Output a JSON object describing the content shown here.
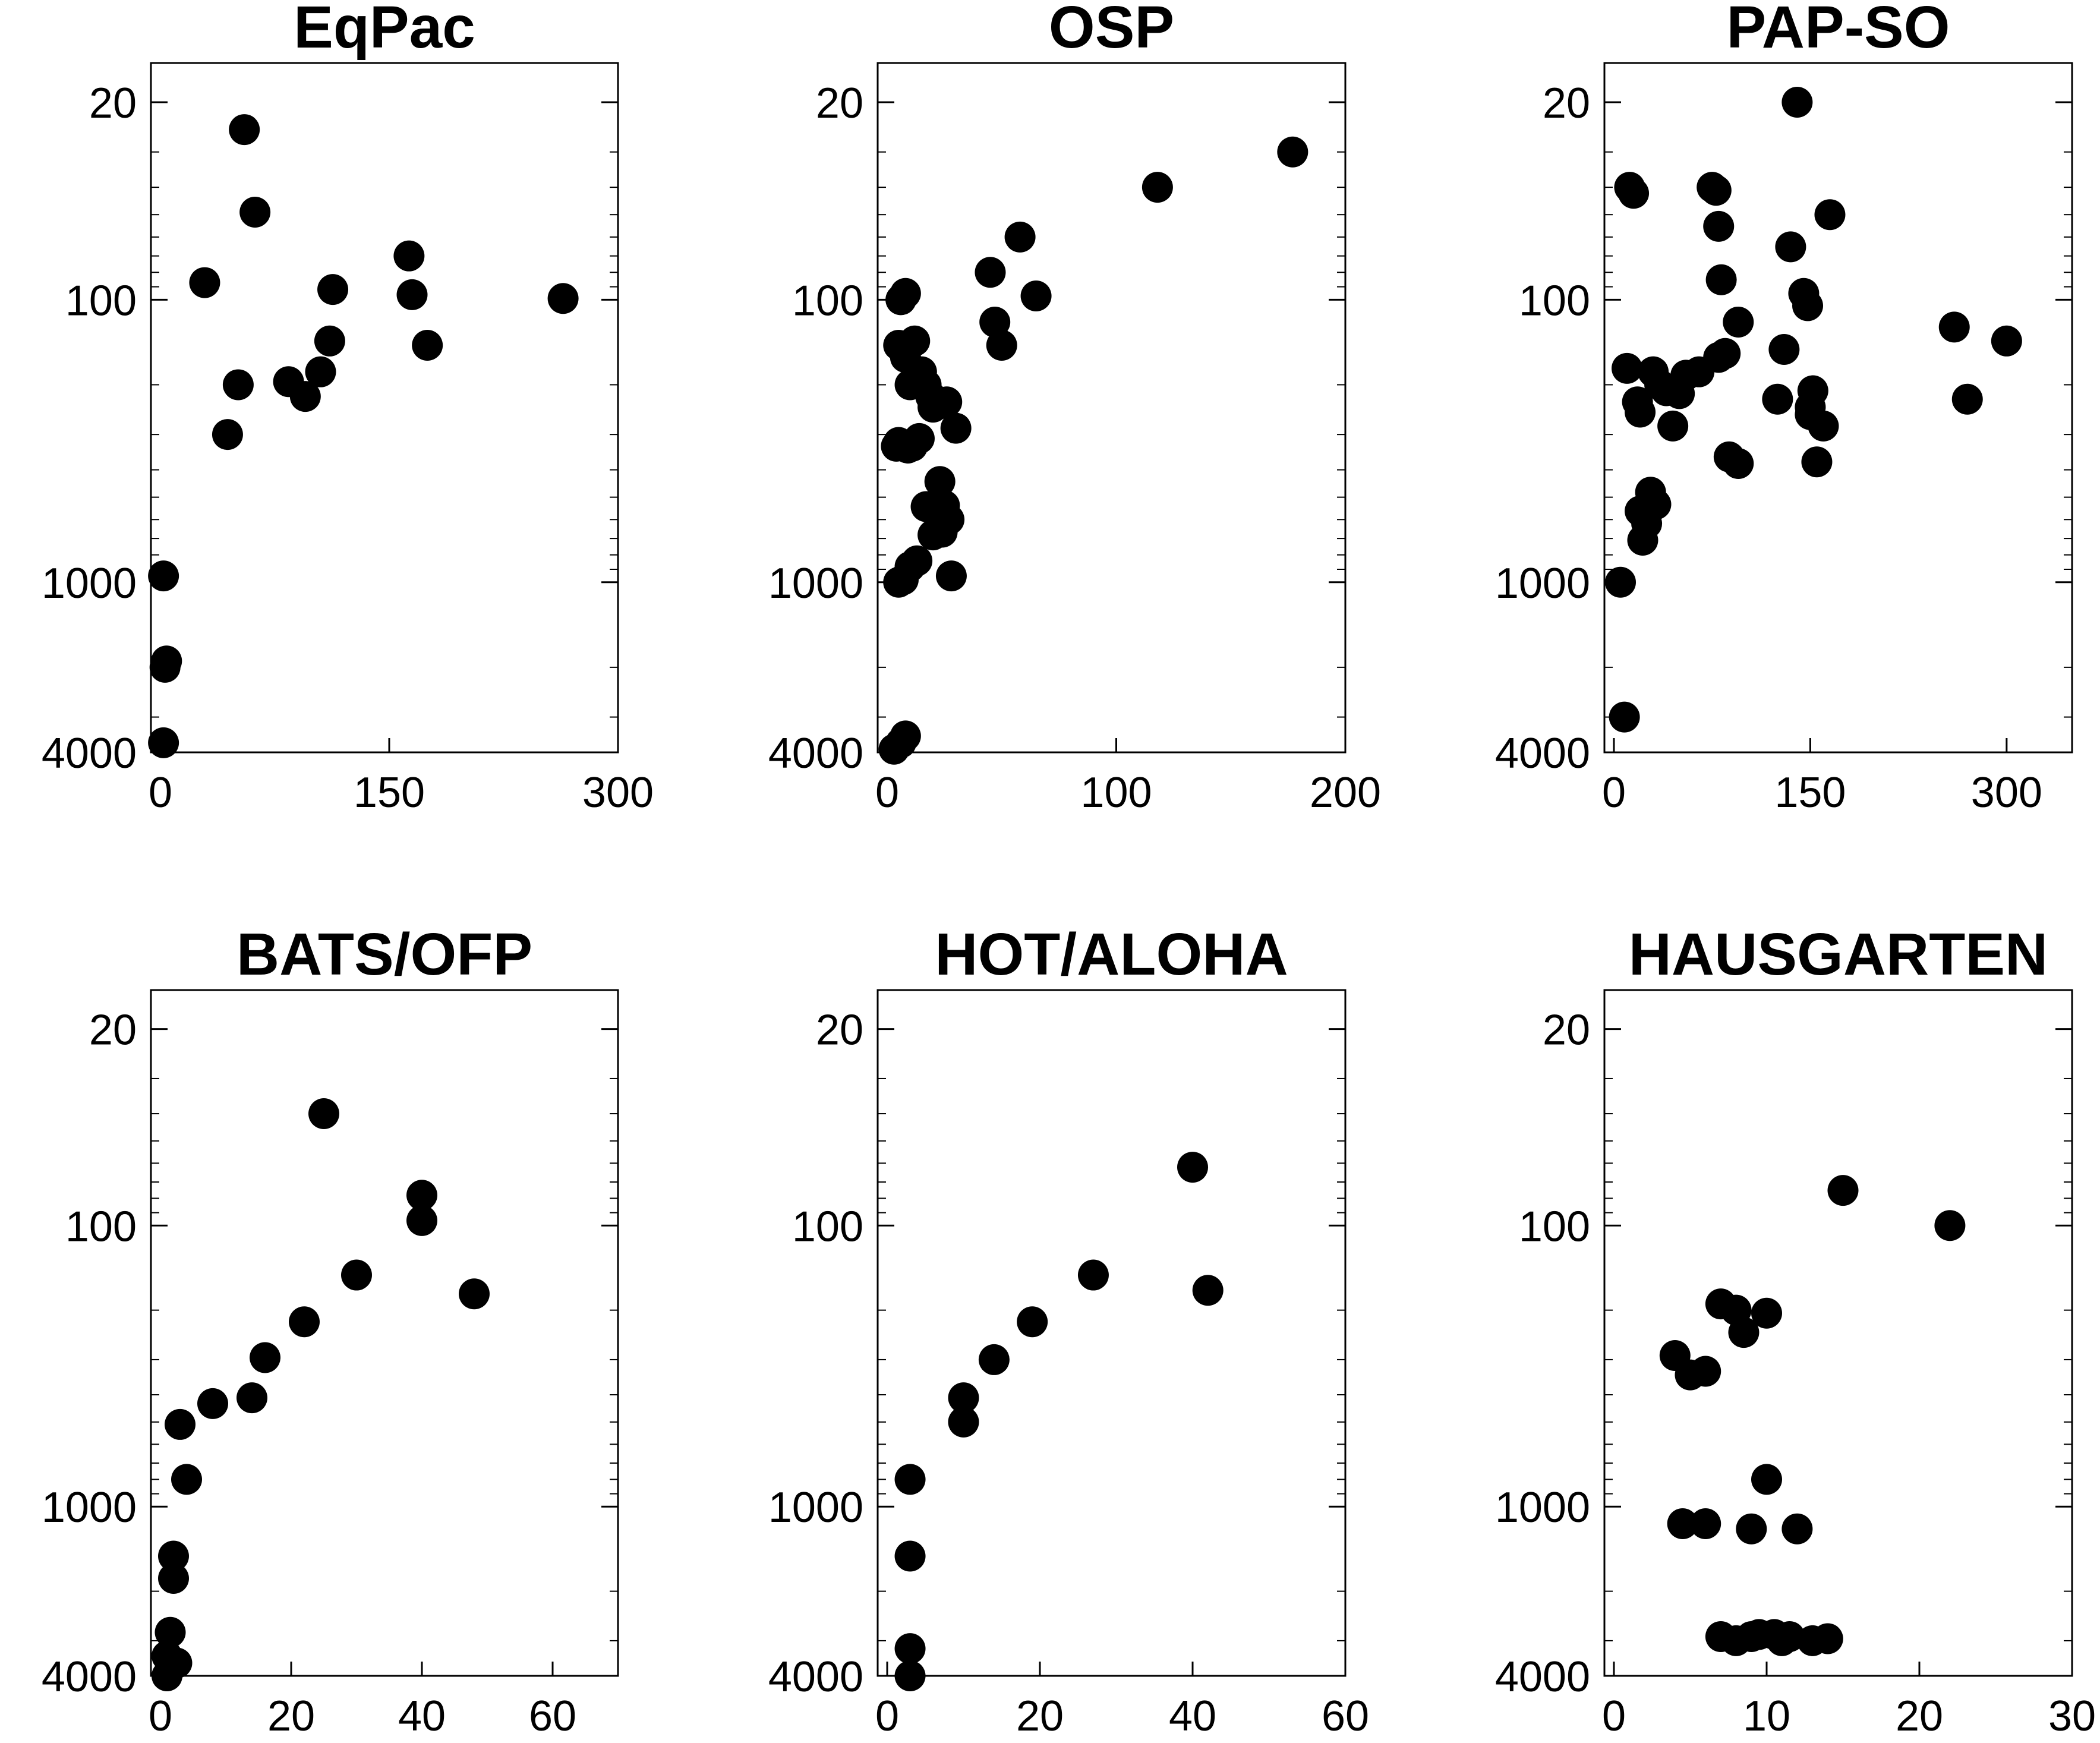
{
  "chart_data": [
    {
      "type": "scatter",
      "title": "EqPac",
      "xlim": [
        0,
        300
      ],
      "xticks": [
        "0",
        "150",
        "300"
      ],
      "ylim": [
        20,
        4000
      ],
      "yscale": "log",
      "y_reversed": true,
      "yticks": [
        "20",
        "100",
        "1000",
        "4000"
      ],
      "x": [
        2,
        3,
        4,
        2,
        29,
        44,
        51,
        55,
        62,
        84,
        95,
        105,
        111,
        113,
        165,
        163,
        175,
        264
      ],
      "y": [
        3700,
        2000,
        1900,
        950,
        87,
        300,
        200,
        25,
        49,
        195,
        220,
        180,
        140,
        92,
        96,
        70,
        145,
        99
      ]
    },
    {
      "type": "scatter",
      "title": "OSP",
      "xlim": [
        0,
        200
      ],
      "xticks": [
        "0",
        "100",
        "200"
      ],
      "ylim": [
        20,
        4000
      ],
      "yscale": "log",
      "y_reversed": true,
      "yticks": [
        "20",
        "100",
        "1000",
        "4000"
      ],
      "x": [
        3,
        6,
        8,
        5,
        7,
        10,
        13,
        6,
        8,
        5,
        8,
        12,
        10,
        15,
        13,
        19,
        17,
        20,
        22,
        26,
        30,
        23,
        25,
        27,
        17,
        20,
        24,
        14,
        11,
        4,
        5,
        9,
        28,
        45,
        47,
        50,
        58,
        65,
        118,
        177
      ],
      "y": [
        3900,
        3700,
        3500,
        1000,
        980,
        880,
        840,
        100,
        95,
        145,
        160,
        140,
        200,
        180,
        190,
        220,
        200,
        240,
        235,
        230,
        285,
        440,
        535,
        600,
        540,
        680,
        665,
        310,
        330,
        330,
        320,
        335,
        950,
        80,
        120,
        145,
        60,
        97,
        40,
        30
      ]
    },
    {
      "type": "scatter",
      "title": "PAP-SO",
      "xlim": [
        0,
        350
      ],
      "xticks": [
        "0",
        "150",
        "300"
      ],
      "ylim": [
        20,
        4000
      ],
      "yscale": "log",
      "y_reversed": true,
      "yticks": [
        "20",
        "100",
        "1000",
        "4000"
      ],
      "x": [
        5,
        8,
        10,
        12,
        15,
        18,
        20,
        20,
        22,
        25,
        28,
        30,
        32,
        35,
        40,
        45,
        50,
        55,
        65,
        75,
        78,
        80,
        80,
        82,
        85,
        88,
        95,
        95,
        125,
        130,
        135,
        140,
        145,
        148,
        150,
        150,
        152,
        155,
        160,
        165,
        260,
        270,
        300
      ],
      "y": [
        1000,
        3000,
        175,
        40,
        42,
        230,
        250,
        560,
        710,
        620,
        480,
        180,
        530,
        200,
        210,
        280,
        215,
        185,
        180,
        40,
        41,
        160,
        55,
        85,
        155,
        360,
        120,
        380,
        225,
        150,
        65,
        20,
        95,
        105,
        255,
        240,
        210,
        375,
        280,
        50,
        125,
        225,
        140
      ]
    },
    {
      "type": "scatter",
      "title": "BATS/OFP",
      "xlim": [
        0,
        70
      ],
      "xticks": [
        "0",
        "20",
        "40",
        "60"
      ],
      "ylim": [
        20,
        4000
      ],
      "yscale": "log",
      "y_reversed": true,
      "yticks": [
        "20",
        "100",
        "1000",
        "4000"
      ],
      "x": [
        1,
        1,
        1.5,
        2,
        2,
        2.5,
        3,
        4,
        8,
        14,
        16,
        22,
        25,
        30,
        40,
        40,
        48
      ],
      "y": [
        4000,
        3400,
        2800,
        1800,
        1500,
        3600,
        510,
        800,
        430,
        410,
        295,
        220,
        40,
        150,
        78,
        96,
        175
      ]
    },
    {
      "type": "scatter",
      "title": "HOT/ALOHA",
      "xlim": [
        0,
        60
      ],
      "xticks": [
        "0",
        "20",
        "40",
        "60"
      ],
      "ylim": [
        20,
        4000
      ],
      "yscale": "log",
      "y_reversed": true,
      "yticks": [
        "20",
        "100",
        "1000",
        "4000"
      ],
      "x": [
        3,
        3,
        3,
        3,
        10,
        10,
        14,
        19,
        27,
        40,
        42
      ],
      "y": [
        4000,
        3200,
        1500,
        800,
        500,
        410,
        300,
        220,
        150,
        62,
        170
      ]
    },
    {
      "type": "scatter",
      "title": "HAUSGARTEN",
      "xlim": [
        0,
        30
      ],
      "xticks": [
        "0",
        "10",
        "20",
        "30"
      ],
      "ylim": [
        20,
        4000
      ],
      "yscale": "log",
      "y_reversed": true,
      "yticks": [
        "20",
        "100",
        "1000",
        "4000"
      ],
      "x": [
        4,
        4.5,
        5,
        6,
        6,
        7,
        7,
        8,
        8,
        8.5,
        9,
        9,
        9.5,
        10,
        10,
        10.5,
        11,
        11.5,
        12,
        13,
        14,
        15,
        22
      ],
      "y": [
        290,
        1150,
        340,
        330,
        1150,
        2900,
        190,
        3000,
        200,
        240,
        1200,
        2900,
        2850,
        205,
        800,
        2850,
        3000,
        2900,
        1200,
        3000,
        2950,
        75,
        100
      ]
    }
  ]
}
